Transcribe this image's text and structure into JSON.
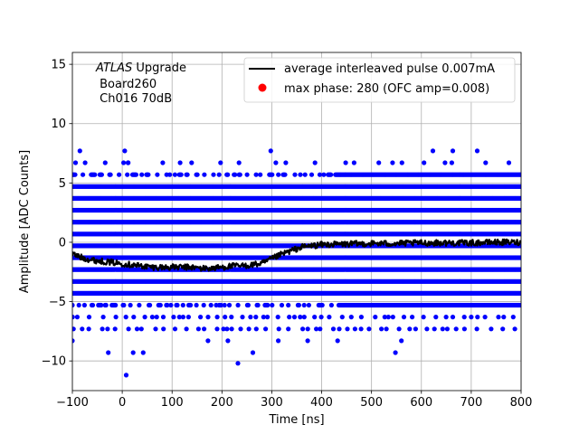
{
  "chart_data": {
    "type": "scatter",
    "title": "",
    "xlabel": "Time [ns]",
    "ylabel": "Amplitude [ADC Counts]",
    "xlim": [
      -100,
      800
    ],
    "ylim": [
      -12.5,
      16
    ],
    "xticks": [
      -100,
      0,
      100,
      200,
      300,
      400,
      500,
      600,
      700,
      800
    ],
    "yticks": [
      -10,
      -5,
      0,
      5,
      10,
      15
    ],
    "grid": true,
    "legend_position": "top-right",
    "annotation": {
      "italic": "ATLAS",
      "rest": " Upgrade",
      "line2": " Board260",
      "line3": " Ch016 70dB"
    },
    "scatter_series": {
      "name": "max phase: 280 (OFC amp=0.008)",
      "color": "#0000ff",
      "dense_levels": [
        -4.3,
        -3.3,
        -2.3,
        -1.3,
        -0.3,
        0.7,
        1.7,
        2.7,
        3.7,
        4.7
      ],
      "band_levels": [
        -5.3,
        5.7
      ],
      "sparse_levels": [
        -6.3,
        -7.3,
        6.7
      ],
      "outliers": [
        {
          "x": -85,
          "y": 7.7
        },
        {
          "x": 5,
          "y": 7.7
        },
        {
          "x": 12,
          "y": 6.7
        },
        {
          "x": 298,
          "y": 7.7
        },
        {
          "x": 623,
          "y": 7.7
        },
        {
          "x": 663,
          "y": 7.7
        },
        {
          "x": 712,
          "y": 7.7
        },
        {
          "x": -100,
          "y": -8.3
        },
        {
          "x": -28,
          "y": -9.3
        },
        {
          "x": 22,
          "y": -9.3
        },
        {
          "x": 42,
          "y": -9.3
        },
        {
          "x": 172,
          "y": -8.3
        },
        {
          "x": 212,
          "y": -8.3
        },
        {
          "x": 262,
          "y": -9.3
        },
        {
          "x": 313,
          "y": -8.3
        },
        {
          "x": 372,
          "y": -8.3
        },
        {
          "x": 432,
          "y": -8.3
        },
        {
          "x": 548,
          "y": -9.3
        },
        {
          "x": 560,
          "y": -8.3
        },
        {
          "x": 8,
          "y": -11.2
        },
        {
          "x": 232,
          "y": -10.2
        }
      ]
    },
    "line_series": {
      "name": "average interleaved pulse 0.007mA",
      "color": "#000000",
      "points": [
        {
          "x": -100,
          "y": -1.0
        },
        {
          "x": -80,
          "y": -1.3
        },
        {
          "x": -60,
          "y": -1.5
        },
        {
          "x": -40,
          "y": -1.6
        },
        {
          "x": -20,
          "y": -1.7
        },
        {
          "x": 0,
          "y": -1.8
        },
        {
          "x": 20,
          "y": -1.9
        },
        {
          "x": 40,
          "y": -2.0
        },
        {
          "x": 60,
          "y": -2.1
        },
        {
          "x": 80,
          "y": -2.1
        },
        {
          "x": 100,
          "y": -2.1
        },
        {
          "x": 120,
          "y": -2.1
        },
        {
          "x": 140,
          "y": -2.1
        },
        {
          "x": 160,
          "y": -2.2
        },
        {
          "x": 180,
          "y": -2.2
        },
        {
          "x": 200,
          "y": -2.1
        },
        {
          "x": 220,
          "y": -2.0
        },
        {
          "x": 240,
          "y": -2.0
        },
        {
          "x": 260,
          "y": -1.9
        },
        {
          "x": 280,
          "y": -1.8
        },
        {
          "x": 300,
          "y": -1.4
        },
        {
          "x": 320,
          "y": -1.0
        },
        {
          "x": 340,
          "y": -0.7
        },
        {
          "x": 360,
          "y": -0.4
        },
        {
          "x": 380,
          "y": -0.3
        },
        {
          "x": 400,
          "y": -0.2
        },
        {
          "x": 450,
          "y": -0.15
        },
        {
          "x": 500,
          "y": -0.1
        },
        {
          "x": 550,
          "y": -0.1
        },
        {
          "x": 600,
          "y": -0.05
        },
        {
          "x": 650,
          "y": -0.05
        },
        {
          "x": 700,
          "y": -0.05
        },
        {
          "x": 750,
          "y": 0.0
        },
        {
          "x": 800,
          "y": 0.0
        }
      ]
    }
  }
}
